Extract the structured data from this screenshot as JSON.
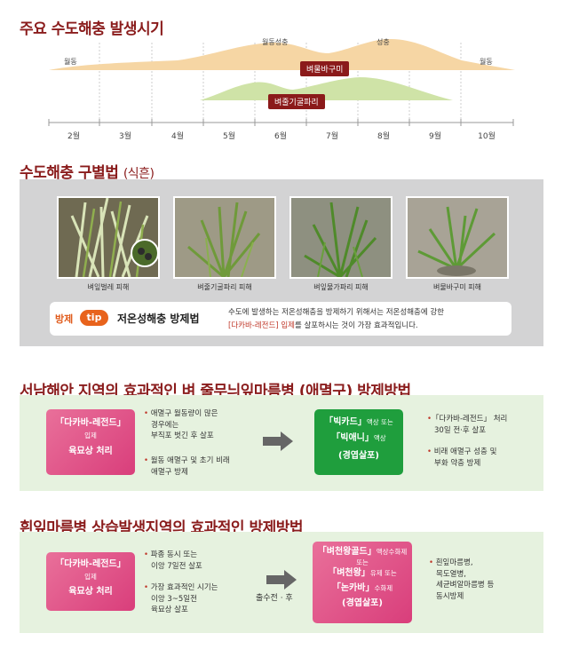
{
  "section1": {
    "title": "주요 수도해충 발생시기",
    "labels": {
      "wintering_left": "월동",
      "wintering_right": "월동",
      "wintering_adult": "월동성충",
      "adult": "성충"
    },
    "pest_brown": "벼물바구미",
    "pest_green": "벼줄기굴파리",
    "months": [
      "2월",
      "3월",
      "4월",
      "5월",
      "6월",
      "7월",
      "8월",
      "9월",
      "10월"
    ]
  },
  "section2": {
    "title_main": "수도해충 구별법",
    "title_paren": "(식흔)",
    "photos": [
      "벼잎벌레 피해",
      "벼줄기굴파리 피해",
      "벼잎물가파리 피해",
      "벼물바구미 피해"
    ],
    "tip": {
      "label": "방제",
      "pill": "tip",
      "title": "저온성해충 방제법",
      "line1": "수도에 발생하는 저온성해충을 방제하기 위해서는 저온성해충에 강한",
      "line2_hl": "[다카바-레전드] 입제",
      "line2_rest": "를 살포하시는 것이 가장 효과적입니다."
    }
  },
  "section3": {
    "title": "서남해안 지역의 효과적인 벼 줄무늬잎마름병 (애멸구) 방제방법",
    "left_box": {
      "line1": "「다카바-레전드」",
      "line2": "입제",
      "line3": "육묘상 처리"
    },
    "bullets1": [
      "애멸구 월동량이 많은",
      "경우에는",
      "부직포 벗긴 후 살포"
    ],
    "bullets2": [
      "월동 애멸구 및 초기 비래",
      "애멸구 방제"
    ],
    "right_box": {
      "l1a": "「빅카드」",
      "l1b": "액상 또는",
      "l2a": "「빅애니」",
      "l2b": "액상",
      "l3": "(경엽살포)"
    },
    "right_b1": [
      "「다카바-레전드」 처리",
      "30일 전·후 살포"
    ],
    "right_b2": [
      "비래 애멸구 성충 및",
      "부화 약충 방제"
    ]
  },
  "section4": {
    "title": "흰잎마름병 상습발생지역의 효과적인 방제방법",
    "left_box": {
      "line1": "「다카바-레전드」",
      "line2": "입제",
      "line3": "육묘상 처리"
    },
    "bullets1": [
      "파종 동시 또는",
      "이앙 7일전 살포"
    ],
    "bullets2": [
      "가장 효과적인 시기는",
      "이앙 3~5일전",
      "육묘상 살포"
    ],
    "arrow_label": "출수전 · 후",
    "right_box": {
      "l1a": "「벼천왕골드」",
      "l1b": "액상수화제",
      "l1c": "또는",
      "l2a": "「벼천왕」",
      "l2b": "유제 또는",
      "l3a": "「논카바」",
      "l3b": "수화제",
      "l4": "(경엽살포)"
    },
    "right_bullets": [
      "흰잎마름병,",
      "목도열병,",
      "세균벼알마름병 등",
      "동시방제"
    ]
  },
  "colors": {
    "title": "#8a1c1c",
    "orange": "#e8631c",
    "pink": "#d93e7b",
    "green": "#1f9e3d",
    "peach": "#f6d6a4",
    "leaf": "#cfe3a7"
  }
}
